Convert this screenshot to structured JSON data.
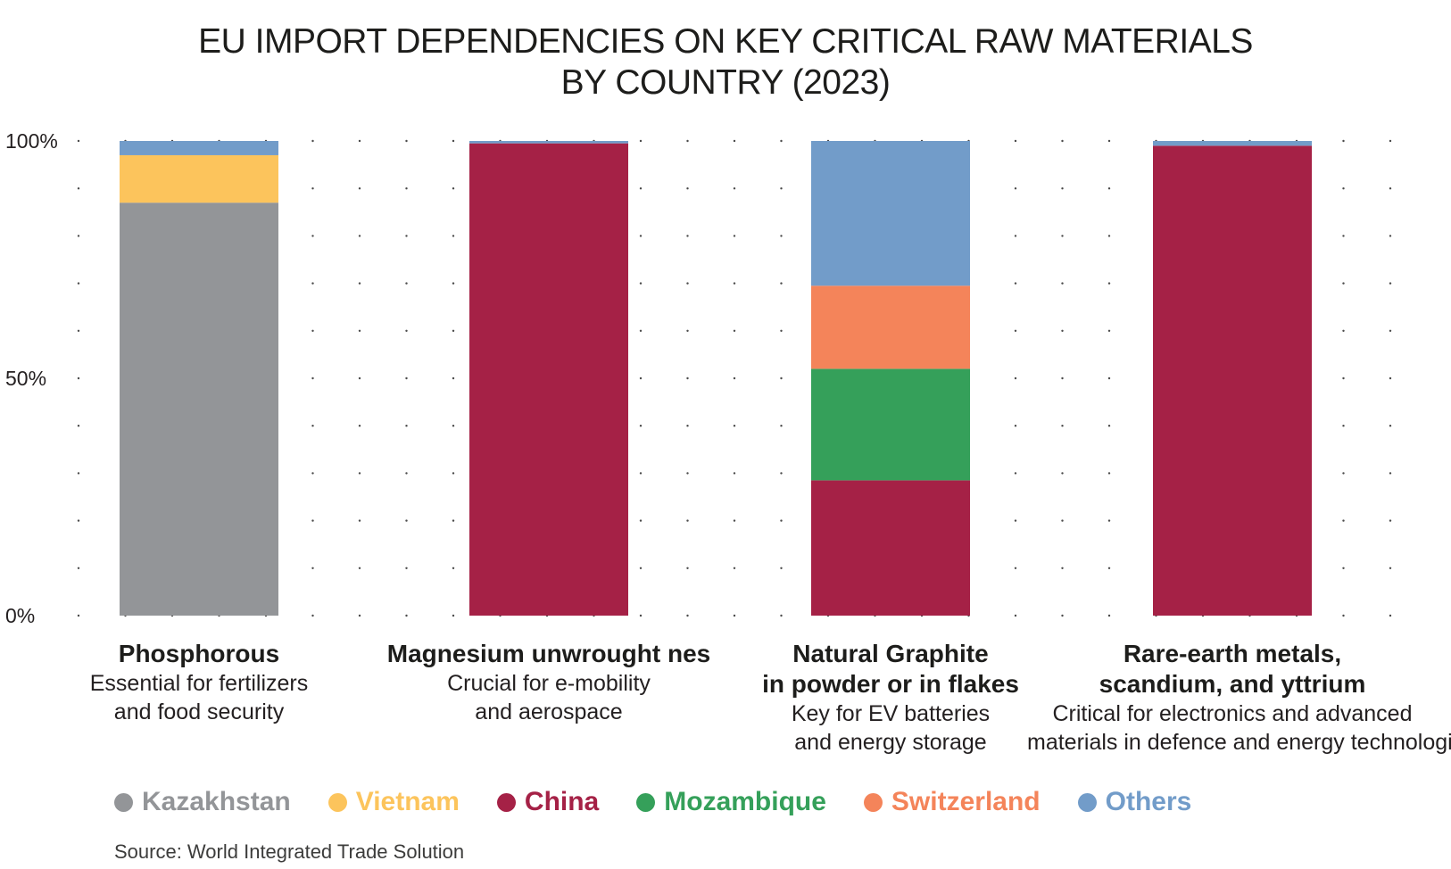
{
  "title_lines": [
    "EU IMPORT DEPENDENCIES ON KEY CRITICAL RAW MATERIALS",
    "BY COUNTRY (2023)"
  ],
  "source": "Source: World Integrated Trade Solution",
  "chart_data": {
    "type": "bar",
    "stacked": true,
    "title": "EU IMPORT DEPENDENCIES ON KEY CRITICAL RAW MATERIALS BY COUNTRY (2023)",
    "ylim": [
      0,
      100
    ],
    "yticks": [
      "0%",
      "50%",
      "100%"
    ],
    "grid": "dotted",
    "categories": [
      {
        "name_lines": [
          "Phosphorous"
        ],
        "desc_lines": [
          "Essential for fertilizers",
          "and food security"
        ]
      },
      {
        "name_lines": [
          "Magnesium unwrought nes"
        ],
        "desc_lines": [
          "Crucial for e-mobility",
          "and aerospace"
        ]
      },
      {
        "name_lines": [
          "Natural Graphite",
          "in powder or in flakes"
        ],
        "desc_lines": [
          "Key for EV batteries",
          "and energy storage"
        ]
      },
      {
        "name_lines": [
          "Rare-earth metals,",
          "scandium, and yttrium"
        ],
        "desc_lines": [
          "Critical for electronics and advanced",
          "materials in defence and energy technologies"
        ]
      }
    ],
    "series": [
      {
        "name": "Kazakhstan",
        "color": "#939598",
        "values": [
          87,
          0,
          0,
          0
        ]
      },
      {
        "name": "Vietnam",
        "color": "#fcc45c",
        "values": [
          10,
          0,
          0,
          0
        ]
      },
      {
        "name": "China",
        "color": "#a52146",
        "values": [
          0,
          99.5,
          28.5,
          99
        ]
      },
      {
        "name": "Mozambique",
        "color": "#35a05a",
        "values": [
          0,
          0,
          23.5,
          0
        ]
      },
      {
        "name": "Switzerland",
        "color": "#f4845a",
        "values": [
          0,
          0,
          17.5,
          0
        ]
      },
      {
        "name": "Others",
        "color": "#729cc9",
        "values": [
          3,
          0.5,
          30.5,
          1
        ]
      }
    ],
    "legend_position": "bottom"
  }
}
